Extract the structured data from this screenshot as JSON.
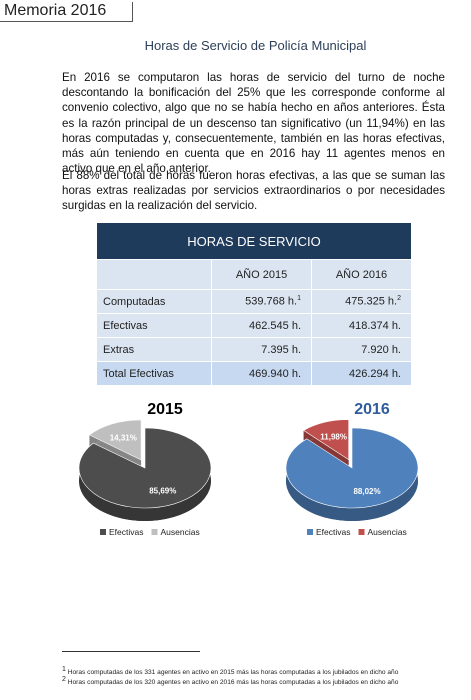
{
  "header": {
    "title": "Memoria 2016"
  },
  "title": "Horas de Servicio de Policía Municipal",
  "paragraphs": [
    "En 2016 se computaron las horas de servicio del turno de noche descontando la bonificación del 25% que les corresponde conforme al convenio colectivo, algo que no se había hecho en años anteriores. Ésta es la razón principal de un descenso tan significativo (un 11,94%) en las horas computadas y, consecuentemente, también en las horas efectivas, más aún teniendo en cuenta que en 2016 hay 11 agentes menos en activo que en el año anterior.",
    "El 88% del total de horas fueron horas efectivas, a las que se suman las horas extras realizadas por servicios extraordinarios o por necesidades surgidas en la realización del servicio."
  ],
  "table": {
    "title": "HORAS DE SERVICIO",
    "columns": [
      "AÑO 2015",
      "AÑO 2016"
    ],
    "rows": [
      [
        "Computadas",
        "539.768 h.",
        "475.325 h."
      ],
      [
        "Efectivas",
        "462.545 h.",
        "418.374 h."
      ],
      [
        "Extras",
        "7.395 h.",
        "7.920 h."
      ],
      [
        "Total Efectivas",
        "469.940 h.",
        "426.294 h."
      ]
    ],
    "footnote_marks": [
      "1",
      "2"
    ]
  },
  "chart_data": [
    {
      "type": "pie",
      "title": "2015",
      "title_color": "#000000",
      "categories": [
        "Efectivas",
        "Ausencias"
      ],
      "values": [
        85.69,
        14.31
      ],
      "value_labels": [
        "85,69%",
        "14,31%"
      ],
      "colors": [
        "#4d4d4d",
        "#bfbfbf"
      ],
      "exploded": 1
    },
    {
      "type": "pie",
      "title": "2016",
      "title_color": "#2f5d9e",
      "categories": [
        "Efectivas",
        "Ausencias"
      ],
      "values": [
        88.02,
        11.98
      ],
      "value_labels": [
        "88,02%",
        "11,98%"
      ],
      "colors": [
        "#4f81bd",
        "#c0504d"
      ],
      "exploded": 1
    }
  ],
  "footnotes": [
    {
      "mark": "1",
      "text": "Horas computadas de los 331 agentes en activo en 2015 más las horas computadas a los jubilados en dicho año"
    },
    {
      "mark": "2",
      "text": "Horas computadas de los 320 agentes en activo en 2016 más las horas computadas a los jubilados en dicho año"
    }
  ]
}
